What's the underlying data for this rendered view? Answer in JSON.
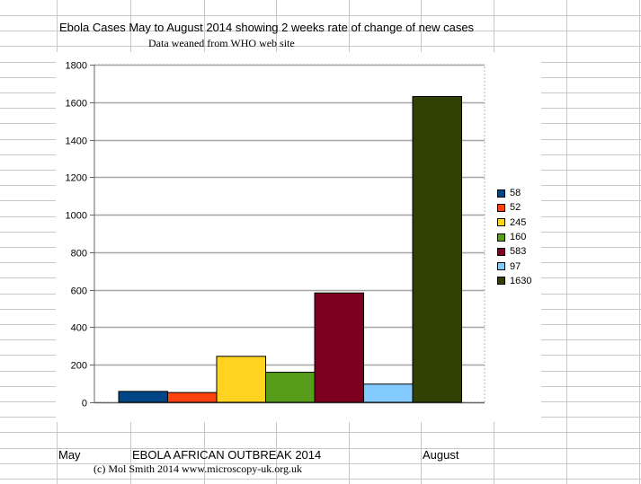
{
  "sheet": {
    "title": "Ebola Cases May to August 2014 showing 2 weeks rate of change of new cases",
    "subtitle": "Data weaned from WHO web site",
    "footer_start": "May",
    "footer_title": "EBOLA AFRICAN OUTBREAK 2014",
    "footer_end": "August",
    "credit": "(c) Mol Smith 2014  www.microscopy-uk.org.uk"
  },
  "chart_data": {
    "type": "bar",
    "ylim": [
      0,
      1800
    ],
    "y_ticks": [
      "0",
      "200",
      "400",
      "600",
      "800",
      "1000",
      "1200",
      "1400",
      "1600",
      "1800"
    ],
    "grid": true,
    "legend_position": "right",
    "series": [
      {
        "name": "58",
        "values": [
          58
        ],
        "color": "#004586"
      },
      {
        "name": "52",
        "values": [
          52
        ],
        "color": "#ff420e"
      },
      {
        "name": "245",
        "values": [
          245
        ],
        "color": "#ffd320"
      },
      {
        "name": "160",
        "values": [
          160
        ],
        "color": "#579d1c"
      },
      {
        "name": "583",
        "values": [
          583
        ],
        "color": "#7e0021"
      },
      {
        "name": "97",
        "values": [
          97
        ],
        "color": "#83caff"
      },
      {
        "name": "1630",
        "values": [
          1630
        ],
        "color": "#314004"
      }
    ]
  }
}
